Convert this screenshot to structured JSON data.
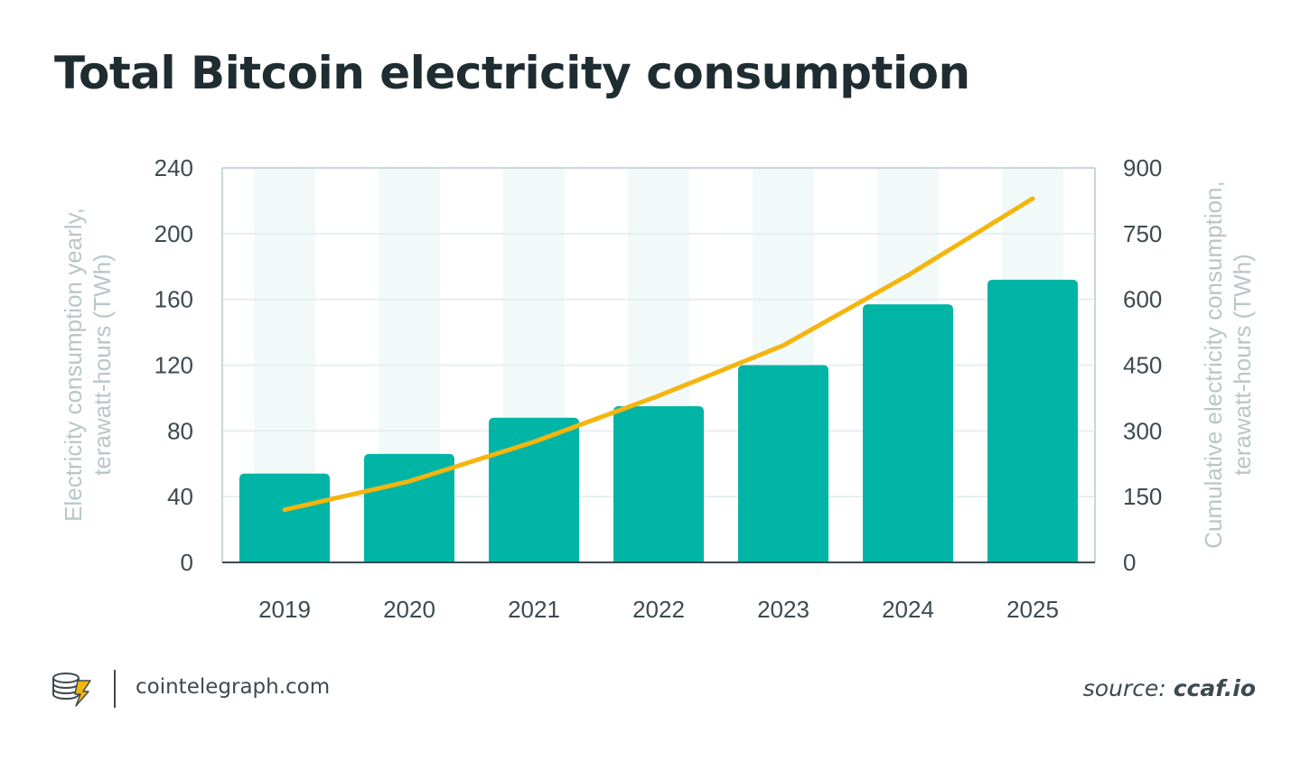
{
  "title": "Total Bitcoin electricity consumption",
  "chart_data": {
    "type": "bar",
    "categories": [
      "2019",
      "2020",
      "2021",
      "2022",
      "2023",
      "2024",
      "2025"
    ],
    "series": [
      {
        "type": "bar",
        "axis": "left",
        "values": [
          54,
          66,
          88,
          95,
          120,
          157,
          172
        ],
        "color": "#00b5a6"
      },
      {
        "type": "line",
        "axis": "right",
        "values": [
          120,
          185,
          275,
          380,
          495,
          655,
          830
        ],
        "color": "#f5b50e"
      }
    ],
    "ylabel_left": [
      "Electricity consumption yearly,",
      "terawatt-hours (TWh)"
    ],
    "ylabel_right": [
      "Cumulative electricity consumption,",
      "terawatt-hours (TWh)"
    ],
    "ylim_left": [
      0,
      240
    ],
    "ylim_right": [
      0,
      900
    ],
    "yticks_left": [
      "0",
      "40",
      "80",
      "120",
      "160",
      "200",
      "240"
    ],
    "yticks_right": [
      "0",
      "150",
      "300",
      "450",
      "600",
      "750",
      "900"
    ],
    "grid": true,
    "colors": {
      "band": "#f2f9f9",
      "grid": "#e6eef0",
      "frame": "#c7d7da"
    }
  },
  "footer": {
    "logo_icon": "coin-stack-lightning-icon",
    "site": "cointelegraph.com",
    "source_label": "source:",
    "source_value": "ccaf.io"
  }
}
